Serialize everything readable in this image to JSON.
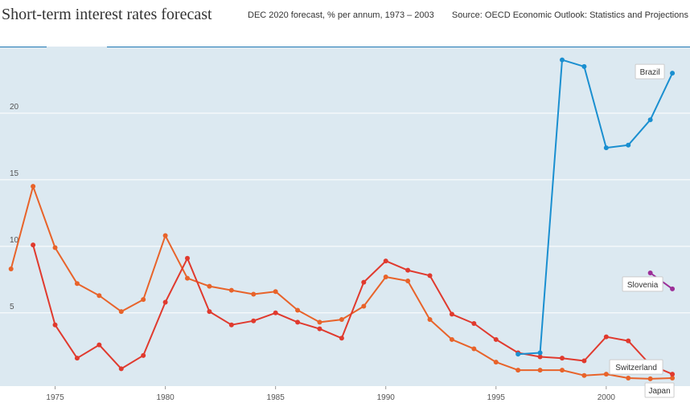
{
  "header": {
    "title": "Short-term interest rates forecast",
    "subtitle": "DEC 2020 forecast, % per annum, 1973 – 2003",
    "source": "Source: OECD Economic Outlook: Statistics and Projections"
  },
  "colors": {
    "plot_background": "#dce9f1",
    "gridline": "#ffffff",
    "top_border": "#1f78b4",
    "axis_text": "#555555"
  },
  "chart_data": {
    "type": "line",
    "title": "Short-term interest rates forecast",
    "xlabel": "",
    "ylabel": "",
    "xlim": [
      1972.5,
      2003.8
    ],
    "ylim": [
      -0.5,
      25
    ],
    "x_ticks": [
      1975,
      1980,
      1985,
      1990,
      1995,
      2000
    ],
    "y_ticks": [
      5,
      10,
      15,
      20
    ],
    "grid": true,
    "series": [
      {
        "name": "Brazil",
        "color": "#1a8fd0",
        "x": [
          1996,
          1997,
          1998,
          1999,
          2000,
          2001,
          2002,
          2003
        ],
        "y": [
          1.9,
          2.0,
          24.0,
          23.5,
          17.4,
          17.6,
          19.5,
          23.0
        ]
      },
      {
        "name": "Slovenia",
        "color": "#9c2f98",
        "x": [
          2002,
          2003
        ],
        "y": [
          8.0,
          6.8
        ]
      },
      {
        "name": "Switzerland",
        "color": "#e03a2e",
        "x": [
          1974,
          1975,
          1976,
          1977,
          1978,
          1979,
          1980,
          1981,
          1982,
          1983,
          1984,
          1985,
          1986,
          1987,
          1988,
          1989,
          1990,
          1991,
          1992,
          1993,
          1994,
          1995,
          1996,
          1997,
          1998,
          1999,
          2000,
          2001,
          2002,
          2003
        ],
        "y": [
          10.1,
          4.1,
          1.6,
          2.6,
          0.8,
          1.8,
          5.8,
          9.1,
          5.1,
          4.1,
          4.4,
          5.0,
          4.3,
          3.8,
          3.1,
          7.3,
          8.9,
          8.2,
          7.8,
          4.9,
          4.2,
          3.0,
          2.0,
          1.7,
          1.6,
          1.4,
          3.2,
          2.9,
          1.1,
          0.4
        ]
      },
      {
        "name": "Japan",
        "color": "#e8632a",
        "x": [
          1973,
          1974,
          1975,
          1976,
          1977,
          1978,
          1979,
          1980,
          1981,
          1982,
          1983,
          1984,
          1985,
          1986,
          1987,
          1988,
          1989,
          1990,
          1991,
          1992,
          1993,
          1994,
          1995,
          1996,
          1997,
          1998,
          1999,
          2000,
          2001,
          2002,
          2003
        ],
        "y": [
          8.3,
          14.5,
          9.9,
          7.2,
          6.3,
          5.1,
          6.0,
          10.8,
          7.6,
          7.0,
          6.7,
          6.4,
          6.6,
          5.2,
          4.3,
          4.5,
          5.5,
          7.7,
          7.4,
          4.5,
          3.0,
          2.3,
          1.3,
          0.7,
          0.7,
          0.7,
          0.3,
          0.4,
          0.1,
          0.05,
          0.1
        ]
      }
    ],
    "labels": [
      {
        "series": "Brazil",
        "text": "Brazil"
      },
      {
        "series": "Slovenia",
        "text": "Slovenia"
      },
      {
        "series": "Switzerland",
        "text": "Switzerland"
      },
      {
        "series": "Japan",
        "text": "Japan"
      }
    ]
  }
}
